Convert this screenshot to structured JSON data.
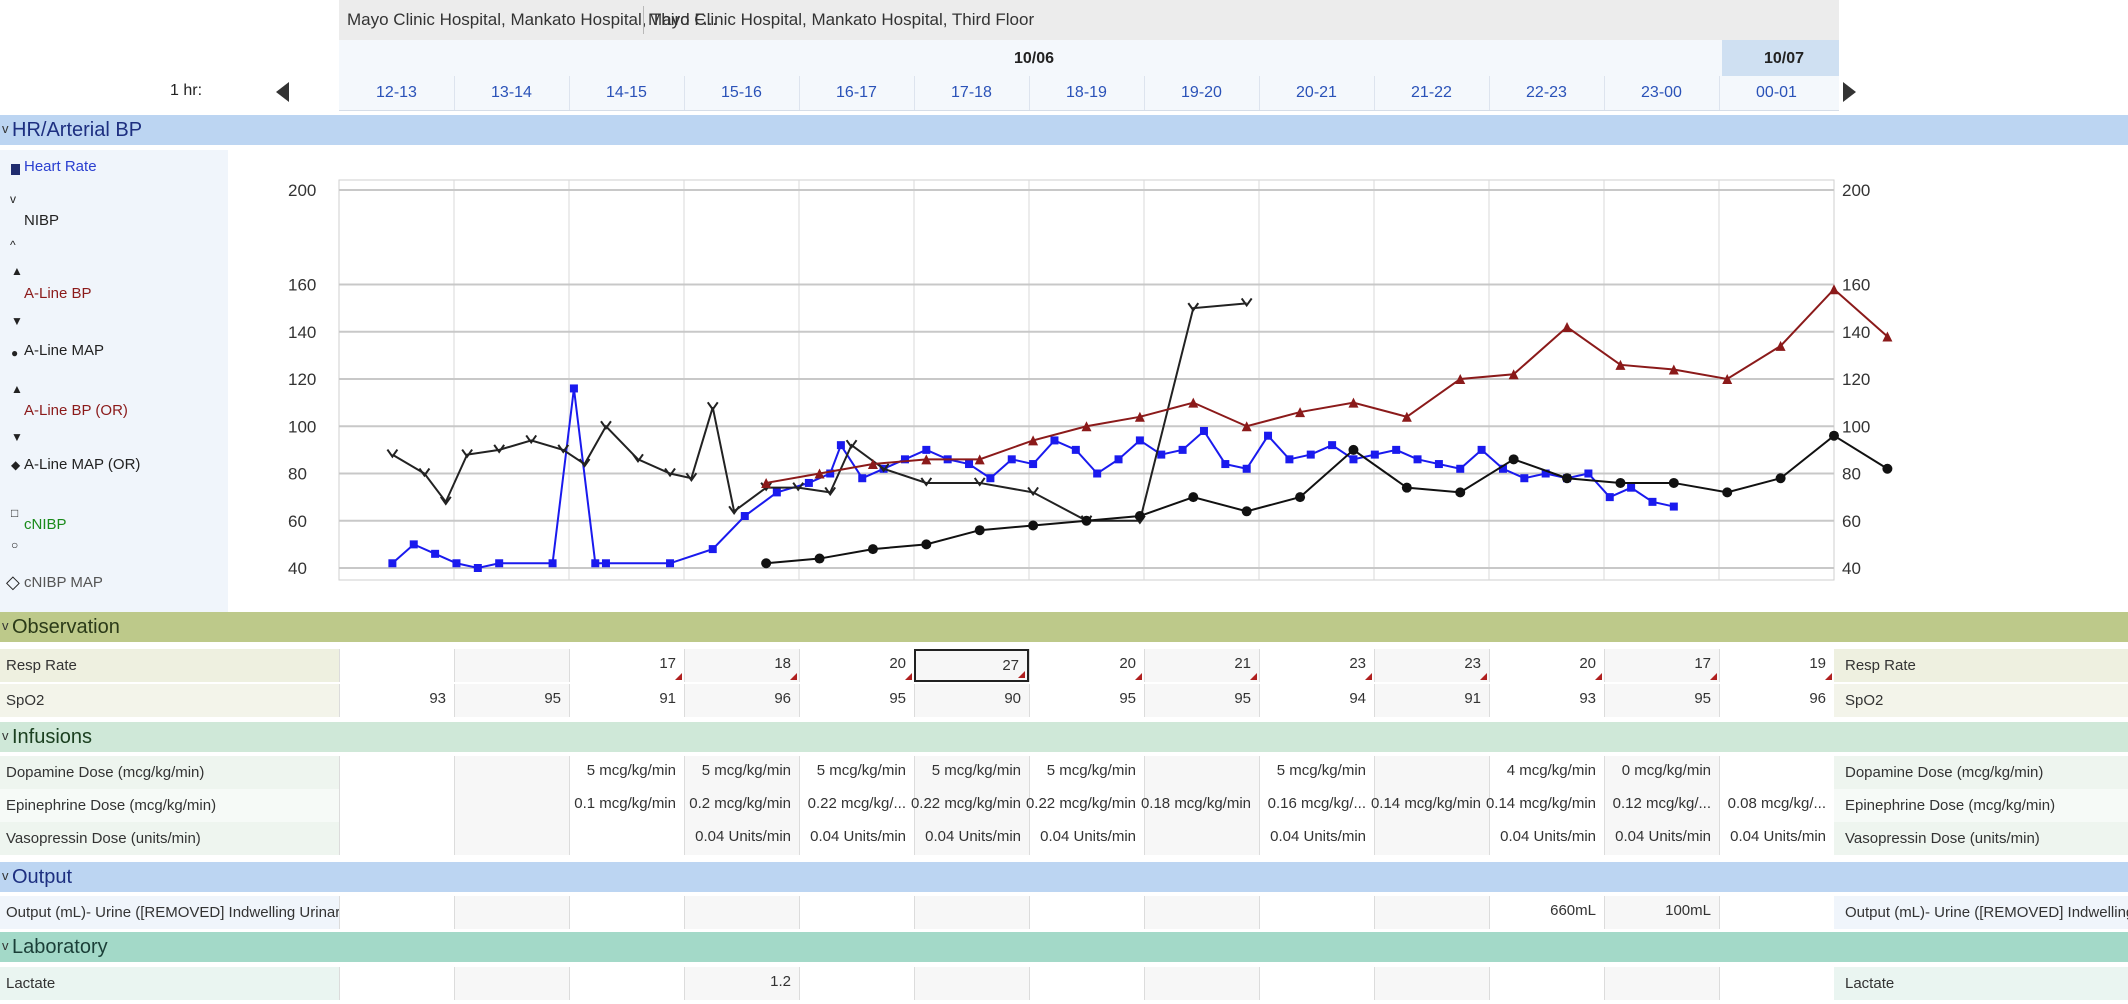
{
  "header": {
    "location_1": "Mayo Clinic Hospital, Mankato Hospital, Third F...",
    "location_2": "Mayo Clinic Hospital, Mankato Hospital, Third Floor",
    "date_1": "10/06",
    "date_2": "10/07",
    "interval": "1 hr:",
    "hours": [
      "12-13",
      "13-14",
      "14-15",
      "15-16",
      "16-17",
      "17-18",
      "18-19",
      "19-20",
      "20-21",
      "21-22",
      "22-23",
      "23-00",
      "00-01"
    ]
  },
  "sections": {
    "hr_bp": "HR/Arterial BP",
    "observation": "Observation",
    "infusions": "Infusions",
    "output": "Output",
    "laboratory": "Laboratory"
  },
  "legend": {
    "heart_rate": "Heart Rate",
    "nibp": "NIBP",
    "aline_bp": "A-Line BP",
    "aline_map": "A-Line MAP",
    "aline_bp_or": "A-Line BP (OR)",
    "aline_map_or": "A-Line MAP (OR)",
    "cnibp": "cNIBP",
    "cnibp_map": "cNIBP MAP"
  },
  "colors": {
    "heart_rate": "#1a1aee",
    "nibp": "#222222",
    "aline_bp": "#8b1a1a",
    "aline_map": "#111111"
  },
  "chart_data": {
    "type": "line",
    "ylim": [
      40,
      200
    ],
    "yticks": [
      200,
      160,
      140,
      120,
      100,
      80,
      60,
      40
    ],
    "x_unit": "hour slot index (0 = 12-13 ... 12 = 00-01)",
    "series": [
      {
        "name": "Heart Rate",
        "color": "#1a1aee",
        "points": [
          [
            0,
            42
          ],
          [
            0.2,
            50
          ],
          [
            0.4,
            46
          ],
          [
            0.6,
            42
          ],
          [
            0.8,
            40
          ],
          [
            1,
            42
          ],
          [
            1.5,
            42
          ],
          [
            1.7,
            116
          ],
          [
            1.9,
            42
          ],
          [
            2,
            42
          ],
          [
            2.6,
            42
          ],
          [
            3,
            48
          ],
          [
            3.3,
            62
          ],
          [
            3.6,
            72
          ],
          [
            3.9,
            76
          ],
          [
            4.1,
            80
          ],
          [
            4.2,
            92
          ],
          [
            4.4,
            78
          ],
          [
            4.6,
            82
          ],
          [
            4.8,
            86
          ],
          [
            5,
            90
          ],
          [
            5.2,
            86
          ],
          [
            5.4,
            84
          ],
          [
            5.6,
            78
          ],
          [
            5.8,
            86
          ],
          [
            6,
            84
          ],
          [
            6.2,
            94
          ],
          [
            6.4,
            90
          ],
          [
            6.6,
            80
          ],
          [
            6.8,
            86
          ],
          [
            7,
            94
          ],
          [
            7.2,
            88
          ],
          [
            7.4,
            90
          ],
          [
            7.6,
            98
          ],
          [
            7.8,
            84
          ],
          [
            8,
            82
          ],
          [
            8.2,
            96
          ],
          [
            8.4,
            86
          ],
          [
            8.6,
            88
          ],
          [
            8.8,
            92
          ],
          [
            9,
            86
          ],
          [
            9.2,
            88
          ],
          [
            9.4,
            90
          ],
          [
            9.6,
            86
          ],
          [
            9.8,
            84
          ],
          [
            10,
            82
          ],
          [
            10.2,
            90
          ],
          [
            10.4,
            82
          ],
          [
            10.6,
            78
          ],
          [
            10.8,
            80
          ],
          [
            11,
            78
          ],
          [
            11.2,
            80
          ],
          [
            11.4,
            70
          ],
          [
            11.6,
            74
          ],
          [
            11.8,
            68
          ],
          [
            12,
            66
          ]
        ]
      },
      {
        "name": "NIBP",
        "color": "#222222",
        "points": [
          [
            0,
            88
          ],
          [
            0.3,
            80
          ],
          [
            0.5,
            68
          ],
          [
            0.7,
            88
          ],
          [
            1,
            90
          ],
          [
            1.3,
            94
          ],
          [
            1.6,
            90
          ],
          [
            1.8,
            84
          ],
          [
            2,
            100
          ],
          [
            2.3,
            86
          ],
          [
            2.6,
            80
          ],
          [
            2.8,
            78
          ],
          [
            3,
            108
          ],
          [
            3.2,
            64
          ],
          [
            3.5,
            74
          ],
          [
            3.8,
            74
          ],
          [
            4.1,
            72
          ],
          [
            4.3,
            92
          ],
          [
            4.6,
            82
          ],
          [
            5,
            76
          ],
          [
            5.5,
            76
          ],
          [
            6,
            72
          ],
          [
            6.5,
            60
          ],
          [
            7,
            60
          ],
          [
            7.5,
            150
          ],
          [
            8,
            152
          ]
        ]
      },
      {
        "name": "A-Line BP",
        "color": "#8b1a1a",
        "points": [
          [
            3.5,
            76
          ],
          [
            4,
            80
          ],
          [
            4.5,
            84
          ],
          [
            5,
            86
          ],
          [
            5.5,
            86
          ],
          [
            6,
            94
          ],
          [
            6.5,
            100
          ],
          [
            7,
            104
          ],
          [
            7.5,
            110
          ],
          [
            8,
            100
          ],
          [
            8.5,
            106
          ],
          [
            9,
            110
          ],
          [
            9.5,
            104
          ],
          [
            10,
            120
          ],
          [
            10.5,
            122
          ],
          [
            11,
            142
          ],
          [
            11.5,
            126
          ],
          [
            12,
            124
          ],
          [
            12.5,
            120
          ],
          [
            13,
            134
          ],
          [
            13.5,
            158
          ],
          [
            14,
            138
          ]
        ]
      },
      {
        "name": "A-Line MAP",
        "color": "#111111",
        "points": [
          [
            3.5,
            42
          ],
          [
            4,
            44
          ],
          [
            4.5,
            48
          ],
          [
            5,
            50
          ],
          [
            5.5,
            56
          ],
          [
            6,
            58
          ],
          [
            6.5,
            60
          ],
          [
            7,
            62
          ],
          [
            7.5,
            70
          ],
          [
            8,
            64
          ],
          [
            8.5,
            70
          ],
          [
            9,
            90
          ],
          [
            9.5,
            74
          ],
          [
            10,
            72
          ],
          [
            10.5,
            86
          ],
          [
            11,
            78
          ],
          [
            11.5,
            76
          ],
          [
            12,
            76
          ],
          [
            12.5,
            72
          ],
          [
            13,
            78
          ],
          [
            13.5,
            96
          ],
          [
            14,
            82
          ]
        ]
      }
    ]
  },
  "observation": {
    "resp_rate": {
      "label": "Resp Rate",
      "values": [
        "",
        "",
        "17",
        "18",
        "20",
        "27",
        "20",
        "21",
        "23",
        "23",
        "20",
        "17",
        "19"
      ]
    },
    "spo2": {
      "label": "SpO2",
      "values": [
        "93",
        "95",
        "91",
        "96",
        "95",
        "90",
        "95",
        "95",
        "94",
        "91",
        "93",
        "95",
        "96"
      ]
    }
  },
  "infusions": {
    "dopamine": {
      "label": "Dopamine Dose (mcg/kg/min)",
      "values": [
        "",
        "",
        "5 mcg/kg/min",
        "5 mcg/kg/min",
        "5 mcg/kg/min",
        "5 mcg/kg/min",
        "5 mcg/kg/min",
        "",
        "5 mcg/kg/min",
        "",
        "4 mcg/kg/min",
        "0 mcg/kg/min",
        ""
      ]
    },
    "epinephrine": {
      "label": "Epinephrine Dose (mcg/kg/min)",
      "values": [
        "",
        "",
        "0.1 mcg/kg/min",
        "0.2 mcg/kg/min",
        "0.22 mcg/kg/...",
        "0.22 mcg/kg/min",
        "0.22 mcg/kg/min",
        "0.18 mcg/kg/min",
        "0.16 mcg/kg/...",
        "0.14 mcg/kg/min",
        "0.14 mcg/kg/min",
        "0.12 mcg/kg/...",
        "0.08 mcg/kg/..."
      ]
    },
    "vasopressin": {
      "label": "Vasopressin Dose (units/min)",
      "values": [
        "",
        "",
        "",
        "0.04 Units/min",
        "0.04 Units/min",
        "0.04 Units/min",
        "0.04 Units/min",
        "",
        "0.04 Units/min",
        "",
        "0.04 Units/min",
        "0.04 Units/min",
        "0.04 Units/min"
      ]
    }
  },
  "output": {
    "urine": {
      "label": "Output (mL)- Urine ([REMOVED] Indwelling Urinary Cathet...",
      "label_right": "Output (mL)- Urine ([REMOVED] Indwelling Uri...",
      "values": [
        "",
        "",
        "",
        "",
        "",
        "",
        "",
        "",
        "",
        "",
        "660mL",
        "100mL",
        ""
      ]
    }
  },
  "laboratory": {
    "lactate": {
      "label": "Lactate",
      "values": [
        "",
        "",
        "",
        "1.2",
        "",
        "",
        "",
        "",
        "",
        "",
        "",
        "",
        ""
      ]
    }
  }
}
